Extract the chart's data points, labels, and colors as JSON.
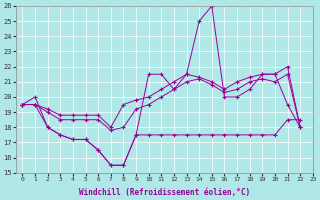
{
  "xlabel": "Windchill (Refroidissement éolien,°C)",
  "bg_color": "#b0e8e8",
  "line_color": "#990099",
  "xlim": [
    -0.5,
    23
  ],
  "ylim": [
    15,
    26
  ],
  "yticks": [
    15,
    16,
    17,
    18,
    19,
    20,
    21,
    22,
    23,
    24,
    25,
    26
  ],
  "xticks": [
    0,
    1,
    2,
    3,
    4,
    5,
    6,
    7,
    8,
    9,
    10,
    11,
    12,
    13,
    14,
    15,
    16,
    17,
    18,
    19,
    20,
    21,
    22,
    23
  ],
  "series": [
    [
      19.5,
      20.0,
      18.0,
      17.5,
      17.2,
      17.2,
      16.5,
      15.5,
      15.5,
      17.5,
      21.5,
      21.5,
      20.5,
      21.5,
      25.0,
      26.0,
      20.0,
      20.0,
      20.5,
      21.5,
      21.5,
      19.5,
      18.0
    ],
    [
      19.5,
      19.5,
      19.2,
      18.8,
      18.8,
      18.8,
      18.8,
      18.0,
      19.5,
      19.8,
      20.0,
      20.5,
      21.0,
      21.5,
      21.3,
      21.0,
      20.5,
      21.0,
      21.3,
      21.5,
      21.5,
      22.0,
      18.0
    ],
    [
      19.5,
      19.5,
      19.0,
      18.5,
      18.5,
      18.5,
      18.5,
      17.8,
      18.0,
      19.2,
      19.5,
      20.0,
      20.5,
      21.0,
      21.2,
      20.8,
      20.3,
      20.5,
      21.0,
      21.2,
      21.0,
      21.5,
      18.0
    ],
    [
      19.5,
      19.5,
      18.0,
      17.5,
      17.2,
      17.2,
      16.5,
      15.5,
      15.5,
      17.5,
      17.5,
      17.5,
      17.5,
      17.5,
      17.5,
      17.5,
      17.5,
      17.5,
      17.5,
      17.5,
      17.5,
      18.5,
      18.5
    ]
  ]
}
